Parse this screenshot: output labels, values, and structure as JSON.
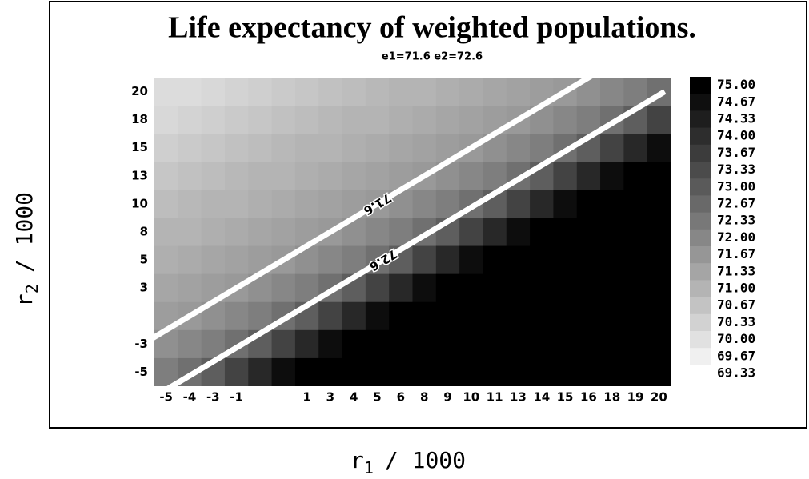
{
  "chart_data": {
    "type": "heatmap",
    "title": "Life expectancy of weighted populations.",
    "subtitle": "e1=71.6 e2=72.6",
    "x_label": [
      "r",
      "1",
      "/ 1000"
    ],
    "y_label": [
      "r",
      "2",
      "/ 1000"
    ],
    "x": [
      -5,
      -4,
      -3,
      -1,
      null,
      null,
      1,
      3,
      4,
      5,
      6,
      8,
      9,
      10,
      11,
      13,
      14,
      15,
      16,
      18,
      19,
      20
    ],
    "y": [
      20,
      18,
      15,
      13,
      10,
      8,
      5,
      3,
      null,
      -3,
      -5
    ],
    "z": [
      [
        70.1,
        70.1,
        70.2,
        70.3,
        70.4,
        70.5,
        70.6,
        70.7,
        70.8,
        70.9,
        71.0,
        71.0,
        71.1,
        71.2,
        71.3,
        71.4,
        71.5,
        71.6,
        71.8,
        72.0,
        72.2,
        72.5
      ],
      [
        70.2,
        70.3,
        70.4,
        70.5,
        70.6,
        70.7,
        70.8,
        70.9,
        71.0,
        71.0,
        71.1,
        71.2,
        71.3,
        71.4,
        71.5,
        71.6,
        71.8,
        72.0,
        72.2,
        72.5,
        72.9,
        73.5
      ],
      [
        70.4,
        70.5,
        70.6,
        70.7,
        70.8,
        70.9,
        71.0,
        71.0,
        71.1,
        71.2,
        71.3,
        71.4,
        71.5,
        71.6,
        71.8,
        72.0,
        72.2,
        72.5,
        72.9,
        73.5,
        74.1,
        74.7
      ],
      [
        70.6,
        70.7,
        70.8,
        70.9,
        71.0,
        71.0,
        71.1,
        71.2,
        71.3,
        71.4,
        71.5,
        71.6,
        71.8,
        72.0,
        72.2,
        72.5,
        72.9,
        73.5,
        74.1,
        74.7,
        75,
        75
      ],
      [
        70.8,
        70.9,
        71.0,
        71.0,
        71.1,
        71.2,
        71.3,
        71.4,
        71.5,
        71.6,
        71.8,
        72.0,
        72.2,
        72.5,
        72.9,
        73.5,
        74.1,
        74.7,
        75,
        75,
        75,
        75
      ],
      [
        71.0,
        71.0,
        71.1,
        71.2,
        71.3,
        71.4,
        71.5,
        71.6,
        71.8,
        72.0,
        72.2,
        72.5,
        72.9,
        73.5,
        74.1,
        74.7,
        75,
        75,
        75,
        75,
        75,
        75
      ],
      [
        71.1,
        71.2,
        71.3,
        71.4,
        71.5,
        71.6,
        71.8,
        72.0,
        72.2,
        72.5,
        72.9,
        73.5,
        74.1,
        74.7,
        75,
        75,
        75,
        75,
        75,
        75,
        75,
        75
      ],
      [
        71.3,
        71.4,
        71.5,
        71.6,
        71.8,
        72.0,
        72.2,
        72.5,
        72.9,
        73.5,
        74.1,
        74.7,
        75,
        75,
        75,
        75,
        75,
        75,
        75,
        75,
        75,
        75
      ],
      [
        71.5,
        71.6,
        71.8,
        72.0,
        72.2,
        72.5,
        72.9,
        73.5,
        74.1,
        74.7,
        75,
        75,
        75,
        75,
        75,
        75,
        75,
        75,
        75,
        75,
        75,
        75
      ],
      [
        71.8,
        72.0,
        72.2,
        72.5,
        72.9,
        73.5,
        74.1,
        74.7,
        75,
        75,
        75,
        75,
        75,
        75,
        75,
        75,
        75,
        75,
        75,
        75,
        75,
        75
      ],
      [
        72.2,
        72.5,
        72.9,
        73.5,
        74.1,
        74.7,
        75,
        75,
        75,
        75,
        75,
        75,
        75,
        75,
        75,
        75,
        75,
        75,
        75,
        75,
        75,
        75
      ]
    ],
    "contours": [
      71.6,
      72.6
    ],
    "levels": [
      {
        "value": 75,
        "label": "75.00"
      },
      74.67,
      74.33,
      {
        "value": 74,
        "label": "74.00"
      },
      73.67,
      73.33,
      {
        "value": 73,
        "label": "73.00"
      },
      72.67,
      72.33,
      {
        "value": 72,
        "label": "72.00"
      },
      71.67,
      71.33,
      {
        "value": 71,
        "label": "71.00"
      },
      70.67,
      70.33,
      {
        "value": 70,
        "label": "70.00"
      },
      69.67,
      69.33
    ],
    "colormap": [
      "#ffffff",
      "#000000"
    ]
  }
}
